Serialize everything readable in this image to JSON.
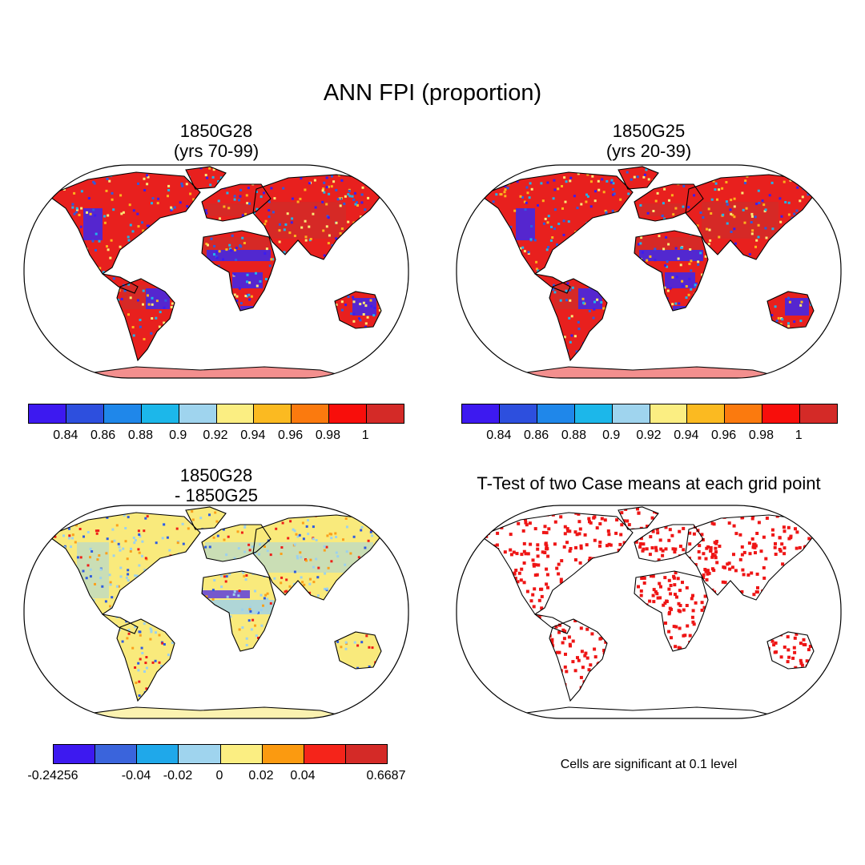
{
  "title": "ANN FPI (proportion)",
  "panels": [
    {
      "line1": "1850G28",
      "line2": "(yrs 70-99)",
      "fill": "#e8201e",
      "dot_colors": [
        "#3b1cf2",
        "#2e5be0",
        "#1fb4ea",
        "#fbea75",
        "#fbb31c"
      ]
    },
    {
      "line1": "1850G25",
      "line2": "(yrs 20-39)",
      "fill": "#e8201e",
      "dot_colors": [
        "#3b1cf2",
        "#2e5be0",
        "#1fb4ea",
        "#fbea75",
        "#fbb31c"
      ]
    },
    {
      "line1": "1850G28",
      "line2": "- 1850G25",
      "fill": "#f9ea7c",
      "dot_colors": [
        "#9cd1ee",
        "#9cd1ee",
        "#2e5be0",
        "#ee1e18",
        "#fba01c"
      ]
    },
    {
      "line1": "T-Test of two Case means at each grid point",
      "line2": "",
      "fill": "none",
      "dot_colors": [
        "#ee1515"
      ]
    }
  ],
  "colorbar_top": {
    "colors": [
      "#3d19f0",
      "#2d4fde",
      "#1f87ea",
      "#1cb7ea",
      "#9fd4ee",
      "#fbee82",
      "#fbba21",
      "#fb7a0e",
      "#f80e0b",
      "#d42a27"
    ],
    "labels": [
      "0.84",
      "0.86",
      "0.88",
      "0.9",
      "0.92",
      "0.94",
      "0.96",
      "0.98",
      "1"
    ]
  },
  "colorbar_diff": {
    "colors": [
      "#3d19f0",
      "#3a64dc",
      "#1fa8ea",
      "#9fd4ee",
      "#fbee82",
      "#fb9a10",
      "#f5241a",
      "#d42a27"
    ],
    "labels": [
      "-0.24256",
      "-0.04",
      "-0.02",
      "0",
      "0.02",
      "0.04",
      "0.6687"
    ]
  },
  "significance_note": "Cells are significant at 0.1 level"
}
